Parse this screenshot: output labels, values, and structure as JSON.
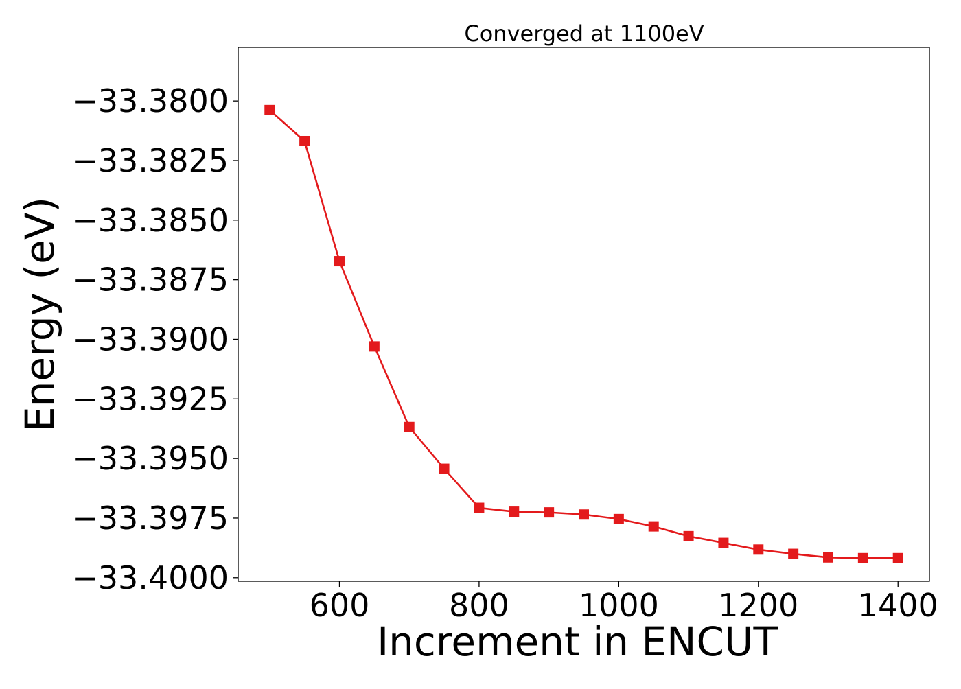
{
  "chart_data": {
    "type": "line",
    "title": "Converged at 1100eV",
    "xlabel": "Increment in ENCUT",
    "ylabel": "Energy (eV)",
    "xlim": [
      455,
      1445
    ],
    "ylim": [
      -33.40015,
      -33.37775
    ],
    "xticks": [
      600,
      800,
      1000,
      1200,
      1400
    ],
    "xtick_labels": [
      "600",
      "800",
      "1000",
      "1200",
      "1400"
    ],
    "yticks": [
      -33.38,
      -33.3825,
      -33.385,
      -33.3875,
      -33.39,
      -33.3925,
      -33.395,
      -33.3975,
      -33.4
    ],
    "ytick_labels": [
      "−33.3800",
      "−33.3825",
      "−33.3850",
      "−33.3875",
      "−33.3900",
      "−33.3925",
      "−33.3950",
      "−33.3975",
      "−33.4000"
    ],
    "grid": false,
    "legend": "none",
    "series": [
      {
        "color": "#e31a1c",
        "marker": "square",
        "x": [
          500,
          550,
          600,
          650,
          700,
          750,
          800,
          850,
          900,
          950,
          1000,
          1050,
          1100,
          1150,
          1200,
          1250,
          1300,
          1350,
          1400
        ],
        "y": [
          -33.38038,
          -33.38168,
          -33.38672,
          -33.3903,
          -33.39368,
          -33.39543,
          -33.39707,
          -33.39723,
          -33.39726,
          -33.39735,
          -33.39754,
          -33.39785,
          -33.39826,
          -33.39854,
          -33.39882,
          -33.399,
          -33.39915,
          -33.39918,
          -33.39918
        ]
      }
    ]
  }
}
